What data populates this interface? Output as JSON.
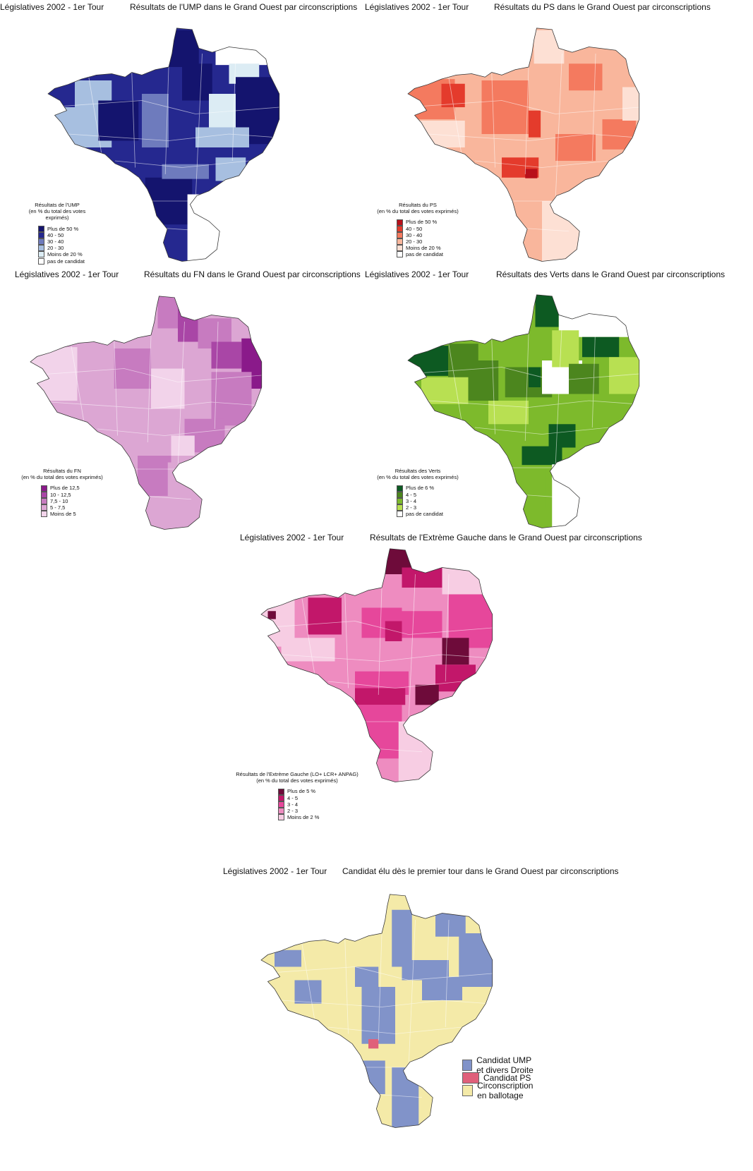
{
  "maps": [
    {
      "id": "ump",
      "header_left": "Législatives 2002 - 1er Tour",
      "header_right": "Résultats de l'UMP dans le Grand Ouest par circonscriptions",
      "legend_title": "Résultats de l'UMP",
      "legend_subtitle": "(en % du total des votes exprimés)",
      "legend_items": [
        {
          "label": "Plus de 50 %",
          "color": "#14146e"
        },
        {
          "label": "40 - 50",
          "color": "#25288f"
        },
        {
          "label": "30 - 40",
          "color": "#6e7bbd"
        },
        {
          "label": "20 - 30",
          "color": "#a7bfe0"
        },
        {
          "label": "Moins de 20 %",
          "color": "#dcecf4"
        },
        {
          "label": "pas de candidat",
          "color": "#ffffff"
        }
      ]
    },
    {
      "id": "ps",
      "header_left": "Législatives 2002 - 1er Tour",
      "header_right": "Résultats du PS dans le Grand Ouest par circonscriptions",
      "legend_title": "Résultats du PS",
      "legend_subtitle": "(en % du total des votes exprimés)",
      "legend_items": [
        {
          "label": "Plus de 50 %",
          "color": "#b8101a"
        },
        {
          "label": "40 - 50",
          "color": "#e43b2c"
        },
        {
          "label": "30 - 40",
          "color": "#f47a5f"
        },
        {
          "label": "20 - 30",
          "color": "#f9b69c"
        },
        {
          "label": "Moins de 20 %",
          "color": "#fde0d4"
        },
        {
          "label": "pas de candidat",
          "color": "#ffffff"
        }
      ]
    },
    {
      "id": "fn",
      "header_left": "Législatives 2002 - 1er Tour",
      "header_right": "Résultats du FN dans le Grand Ouest par circonscriptions",
      "legend_title": "Résultats du FN",
      "legend_subtitle": "(en % du total des votes exprimés)",
      "legend_items": [
        {
          "label": "Plus de 12,5",
          "color": "#8a1a8a"
        },
        {
          "label": "10   -  12,5",
          "color": "#a946a6"
        },
        {
          "label": "7,5 - 10",
          "color": "#c77bc0"
        },
        {
          "label": "5    -   7,5",
          "color": "#dca6d3"
        },
        {
          "label": "Moins de 5",
          "color": "#f2d3ea"
        }
      ]
    },
    {
      "id": "verts",
      "header_left": "Législatives 2002 - 1er Tour",
      "header_right": "Résultats des Verts dans le Grand Ouest par circonscriptions",
      "legend_title": "Résultats des Verts",
      "legend_subtitle": "(en % du total des votes exprimés)",
      "legend_items": [
        {
          "label": "Plus de 6 %",
          "color": "#0d5a22"
        },
        {
          "label": "4 - 5",
          "color": "#4c861e"
        },
        {
          "label": "3 - 4",
          "color": "#7dba2c"
        },
        {
          "label": "2 - 3",
          "color": "#b8e052"
        },
        {
          "label": "pas de candidat",
          "color": "#ffffff"
        }
      ]
    },
    {
      "id": "extreme_gauche",
      "header_left": "Législatives 2002 - 1er Tour",
      "header_right": "Résultats de l'Extrème Gauche dans le Grand Ouest par circonscriptions",
      "legend_title": "Résultats de l'Extrème Gauche  (LO+ LCR+ ANPAG)",
      "legend_subtitle": "(en % du total des votes exprimés)",
      "legend_items": [
        {
          "label": "Plus de 5 %",
          "color": "#6e0b3a"
        },
        {
          "label": "4 - 5",
          "color": "#c2176a"
        },
        {
          "label": "3 - 4",
          "color": "#e6479b"
        },
        {
          "label": "2 - 3",
          "color": "#ee8cc0"
        },
        {
          "label": "Moins de 2 %",
          "color": "#f7cde3"
        }
      ]
    },
    {
      "id": "elus",
      "header_left": "Législatives 2002 - 1er Tour",
      "header_right": "Candidat élu dès le premier tour dans le Grand Ouest par circonscriptions",
      "legend_items": [
        {
          "label": "Candidat UMP et divers Droite",
          "color": "#8193c9"
        },
        {
          "label": "Candidat PS",
          "color": "#e0607a"
        },
        {
          "label": "Circonscription en ballotage",
          "color": "#f4eaa8"
        }
      ]
    }
  ]
}
